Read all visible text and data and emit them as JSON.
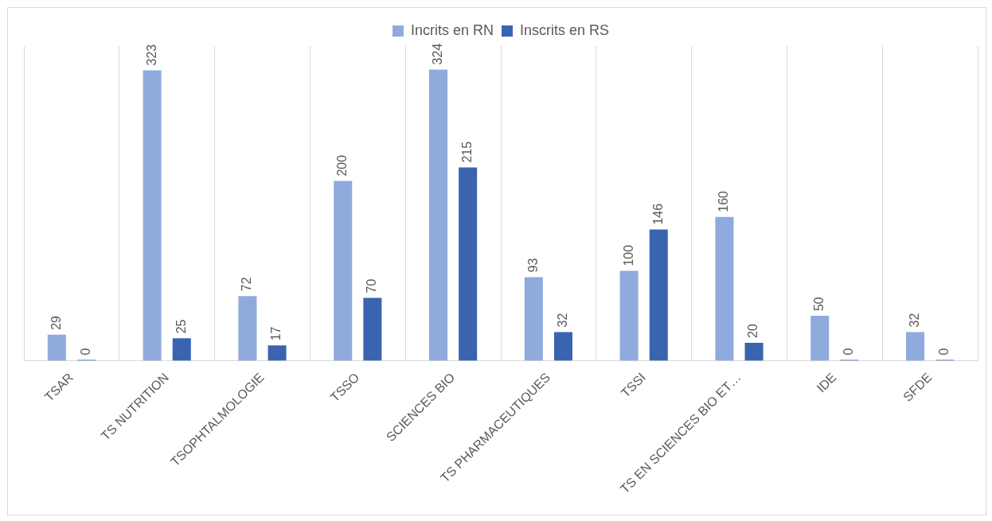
{
  "chart_data": {
    "type": "bar",
    "categories": [
      "TSAR",
      "TS NUTRITION",
      "TSOPHTALMOLOGIE",
      "TSSO",
      "SCIENCES BIO",
      "TS PHARMACEUTIQUES",
      "TSSI",
      "TS EN SCIENCES BIO ET…",
      "IDE",
      "SFDE"
    ],
    "series": [
      {
        "name": "Incrits en RN",
        "color": "#8faadc",
        "values": [
          29,
          323,
          72,
          200,
          324,
          93,
          100,
          160,
          50,
          32
        ]
      },
      {
        "name": "Inscrits en RS",
        "color": "#3a64b0",
        "values": [
          0,
          25,
          17,
          70,
          215,
          32,
          146,
          20,
          0,
          0
        ]
      }
    ],
    "data_labels": true,
    "grid": "x",
    "legend": "top"
  }
}
